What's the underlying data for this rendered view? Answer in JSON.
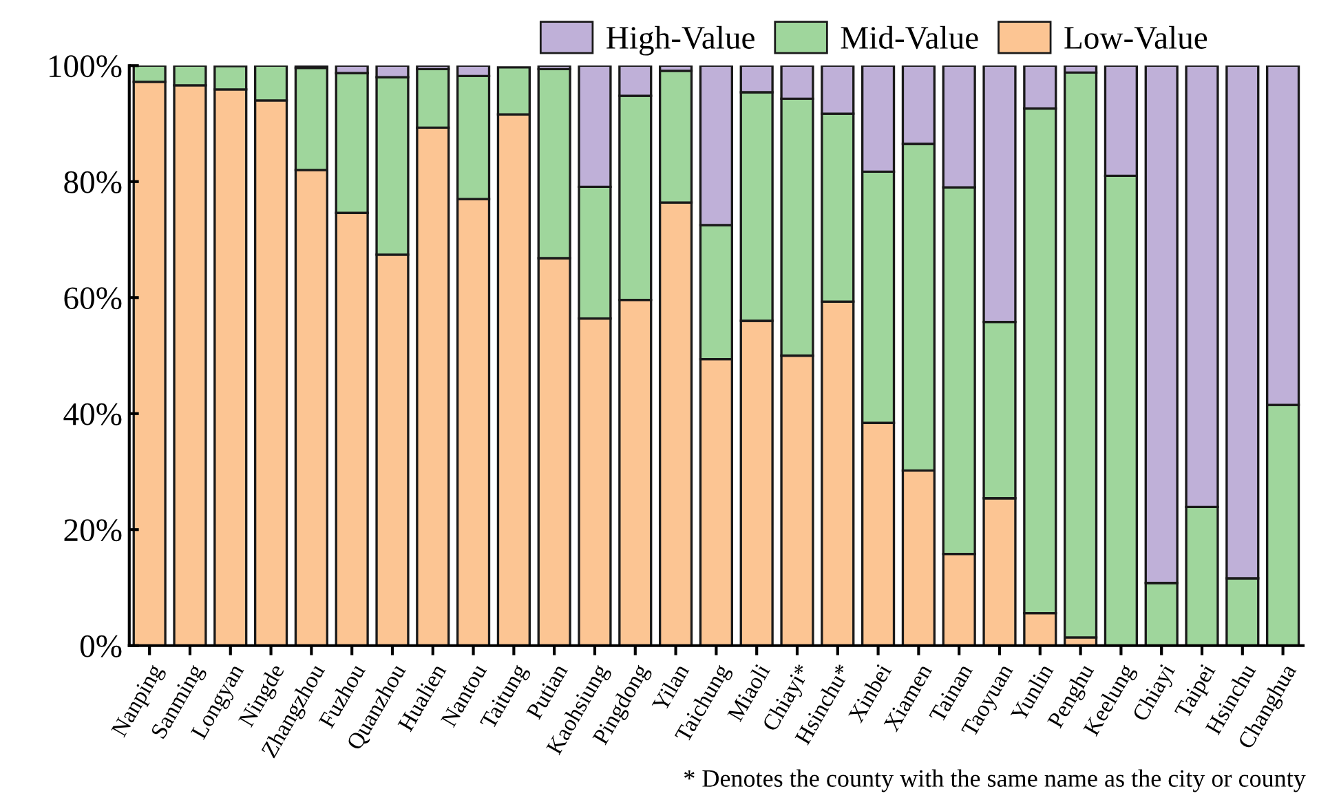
{
  "chart_data": {
    "type": "bar",
    "stacked": true,
    "categories": [
      "Nanping",
      "Sanming",
      "Longyan",
      "Ningde",
      "Zhangzhou",
      "Fuzhou",
      "Quanzhou",
      "Hualien",
      "Nantou",
      "Taitung",
      "Putian",
      "Kaohsiung",
      "Pingdong",
      "Yilan",
      "Taichung",
      "Miaoli",
      "Chiayi*",
      "Hsinchu*",
      "Xinbei",
      "Xiamen",
      "Tainan",
      "Taoyuan",
      "Yunlin",
      "Penghu",
      "Keelung",
      "Chiayi",
      "Taipei",
      "Hsinchu",
      "Changhua"
    ],
    "series": [
      {
        "name": "Low-Value",
        "color": "#fcc593",
        "values": [
          97.2,
          96.6,
          95.9,
          94,
          82,
          74.6,
          67.4,
          89.3,
          77,
          91.6,
          66.8,
          56.4,
          59.6,
          76.4,
          49.4,
          56,
          50,
          59.3,
          38.4,
          30.2,
          15.8,
          25.4,
          5.6,
          1.4,
          null,
          null,
          null,
          null,
          null
        ]
      },
      {
        "name": "Mid-Value",
        "color": "#9fd69c",
        "values": [
          2.8,
          3.4,
          4.0,
          6,
          17.6,
          24.1,
          30.6,
          10.1,
          21.2,
          8.1,
          32.6,
          22.7,
          35.2,
          22.7,
          23.1,
          39.4,
          44.3,
          32.4,
          43.3,
          56.3,
          63.2,
          30.4,
          87,
          97.4,
          81,
          10.8,
          23.9,
          11.6,
          41.5
        ]
      },
      {
        "name": "High-Value",
        "color": "#bfb0d8",
        "values": [
          null,
          null,
          null,
          null,
          0.4,
          1.3,
          2.0,
          0.6,
          1.8,
          null,
          0.6,
          20.9,
          5.2,
          0.9,
          27.5,
          4.6,
          5.7,
          8.3,
          18.3,
          13.5,
          21,
          44.2,
          7.4,
          1.2,
          19,
          89.2,
          76.1,
          88.4,
          58.5
        ]
      }
    ],
    "ylim": [
      0,
      100
    ],
    "yticks": [
      {
        "value": 0,
        "label": "0%"
      },
      {
        "value": 20,
        "label": "20%"
      },
      {
        "value": 40,
        "label": "40%"
      },
      {
        "value": 60,
        "label": "60%"
      },
      {
        "value": 80,
        "label": "80%"
      },
      {
        "value": 100,
        "label": "100%"
      }
    ],
    "legend": "top right",
    "grid": false,
    "annotations": [
      "* Denotes the county with the same name as the city or county"
    ]
  }
}
